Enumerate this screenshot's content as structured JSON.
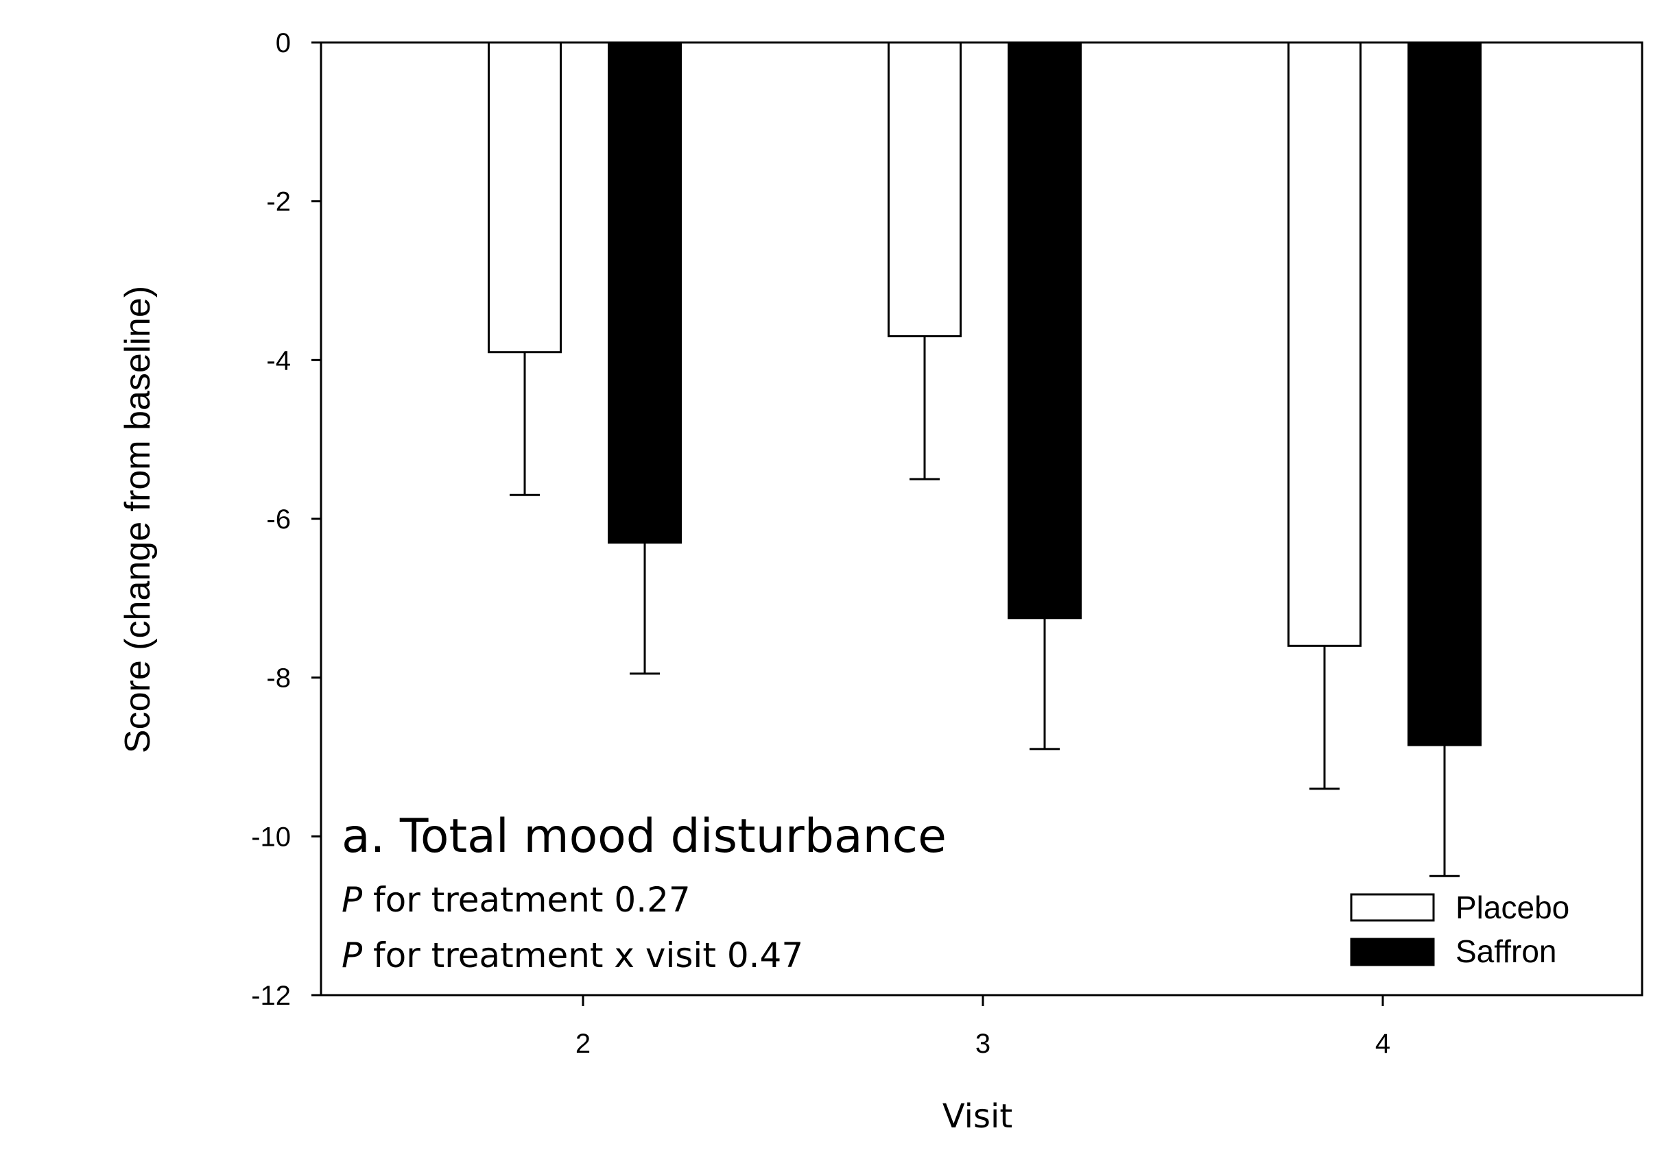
{
  "chart_data": {
    "type": "bar",
    "title": "a. Total mood disturbance",
    "annotations": [
      {
        "italic": "P",
        "text": " for treatment 0.27"
      },
      {
        "italic": "P",
        "text": " for treatment x visit 0.47"
      }
    ],
    "xlabel": "Visit",
    "ylabel": "Score (change from baseline)",
    "categories": [
      "2",
      "3",
      "4"
    ],
    "ylim": [
      -12,
      0
    ],
    "yticks": [
      0,
      -2,
      -4,
      -6,
      -8,
      -10,
      -12
    ],
    "legend_position": "bottom-right",
    "series": [
      {
        "name": "Placebo",
        "color": "#ffffff",
        "values": [
          -3.9,
          -3.7,
          -7.6
        ],
        "error": [
          1.8,
          1.8,
          1.8
        ]
      },
      {
        "name": "Saffron",
        "color": "#000000",
        "values": [
          -6.3,
          -7.25,
          -8.85
        ],
        "error": [
          1.65,
          1.65,
          1.65
        ]
      }
    ]
  }
}
